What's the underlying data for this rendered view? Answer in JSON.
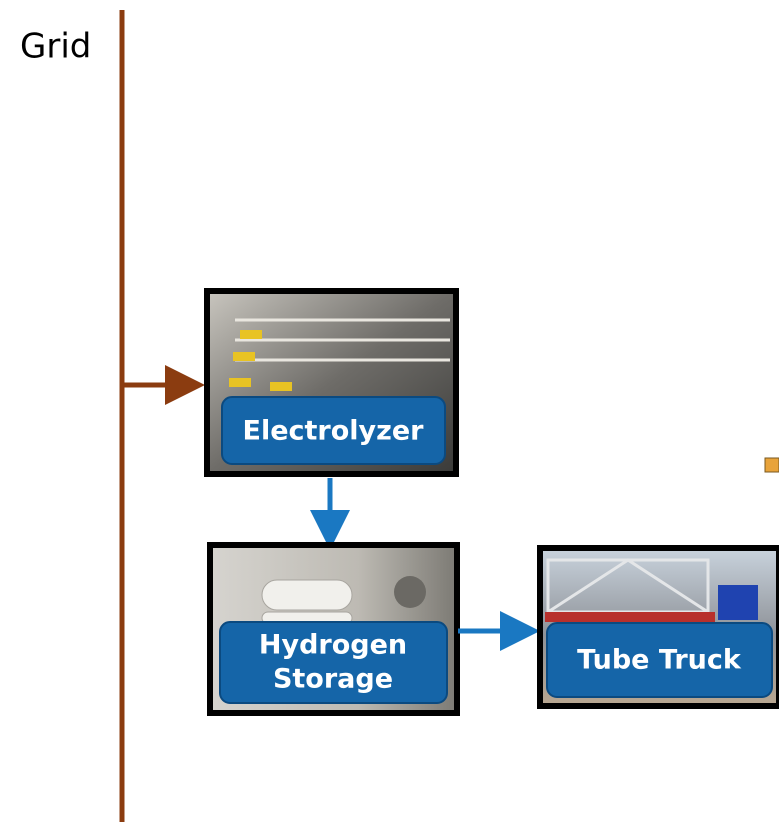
{
  "grid_label": "Grid",
  "nodes": [
    {
      "lines": [
        "Electrolyzer"
      ]
    },
    {
      "lines": [
        "Hydrogen",
        "Storage"
      ]
    },
    {
      "lines": [
        "Tube Truck"
      ]
    }
  ]
}
